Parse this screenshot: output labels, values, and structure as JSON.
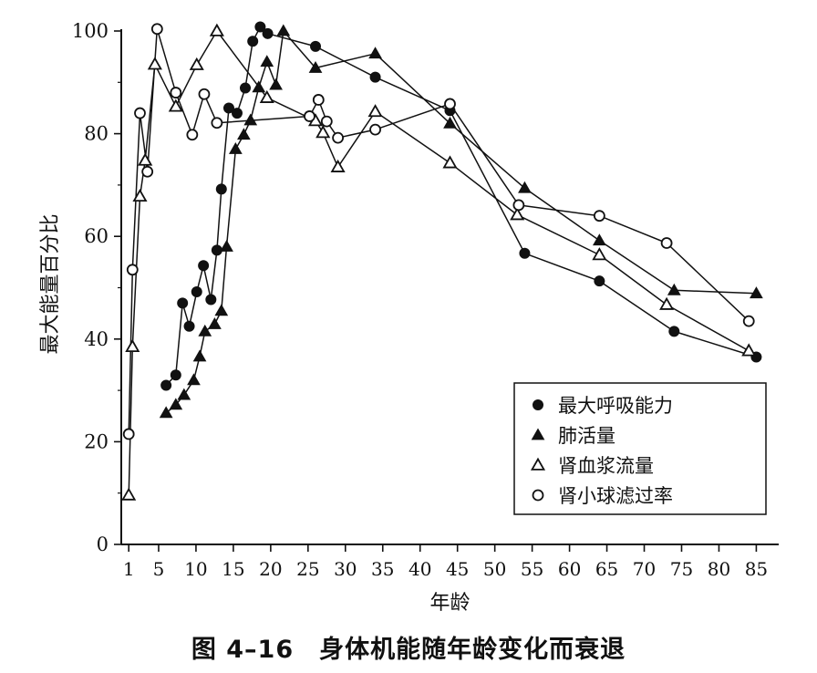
{
  "caption": {
    "number": "图 4–16",
    "title": "身体机能随年龄变化而衰退"
  },
  "chart_data": {
    "type": "line",
    "xlabel": "年龄",
    "ylabel": "最大能量百分比",
    "xlim": [
      0,
      88
    ],
    "ylim": [
      0,
      100
    ],
    "x_ticks": [
      1,
      5,
      10,
      15,
      20,
      25,
      30,
      35,
      40,
      45,
      50,
      55,
      60,
      65,
      70,
      75,
      80,
      85
    ],
    "y_ticks": [
      0,
      20,
      40,
      60,
      80,
      100
    ],
    "grid": false,
    "legend_position": "bottom-right",
    "series": [
      {
        "name": "最大呼吸能力",
        "marker": "filled-circle",
        "points": [
          [
            6,
            31
          ],
          [
            7.3,
            33
          ],
          [
            8.2,
            47
          ],
          [
            9.1,
            42.5
          ],
          [
            10.1,
            49.2
          ],
          [
            11,
            54.3
          ],
          [
            12,
            47.7
          ],
          [
            12.8,
            57.3
          ],
          [
            13.4,
            69.2
          ],
          [
            14.4,
            85
          ],
          [
            15.5,
            84
          ],
          [
            16.6,
            88.9
          ],
          [
            17.6,
            98
          ],
          [
            18.6,
            100.8
          ],
          [
            19.6,
            99.5
          ],
          [
            26,
            97
          ],
          [
            34,
            91
          ],
          [
            44,
            84.5
          ],
          [
            54,
            56.7
          ],
          [
            64,
            51.3
          ],
          [
            74,
            41.5
          ],
          [
            85,
            36.5
          ]
        ]
      },
      {
        "name": "肺活量",
        "marker": "filled-triangle",
        "points": [
          [
            6,
            25.6
          ],
          [
            7.3,
            27.2
          ],
          [
            8.4,
            29.1
          ],
          [
            9.7,
            32
          ],
          [
            10.5,
            36.6
          ],
          [
            11.2,
            41.5
          ],
          [
            12.5,
            42.9
          ],
          [
            13.4,
            45.5
          ],
          [
            14.1,
            58
          ],
          [
            15.3,
            77
          ],
          [
            16.4,
            79.8
          ],
          [
            17.3,
            82.6
          ],
          [
            18.4,
            89
          ],
          [
            19.5,
            94
          ],
          [
            20.7,
            89.5
          ],
          [
            21.7,
            100
          ],
          [
            26,
            92.8
          ],
          [
            34,
            95.6
          ],
          [
            44,
            82
          ],
          [
            54,
            69.4
          ],
          [
            64,
            59.2
          ],
          [
            74,
            49.5
          ],
          [
            85,
            48.9
          ]
        ]
      },
      {
        "name": "肾血浆流量",
        "marker": "open-triangle",
        "points": [
          [
            1,
            9.6
          ],
          [
            1.5,
            38.5
          ],
          [
            2.5,
            67.8
          ],
          [
            3.2,
            74.8
          ],
          [
            4.5,
            93.5
          ],
          [
            7.3,
            85.3
          ],
          [
            10.1,
            93.4
          ],
          [
            12.8,
            100
          ],
          [
            19.5,
            87
          ],
          [
            26,
            82.5
          ],
          [
            27,
            80.2
          ],
          [
            29,
            73.5
          ],
          [
            34,
            84.3
          ],
          [
            44,
            74.3
          ],
          [
            53,
            64.2
          ],
          [
            64,
            56.4
          ],
          [
            73,
            46.7
          ],
          [
            84,
            37.7
          ]
        ]
      },
      {
        "name": "肾小球滤过率",
        "marker": "open-circle",
        "points": [
          [
            1,
            21.5
          ],
          [
            1.5,
            53.5
          ],
          [
            2.5,
            84
          ],
          [
            3.5,
            72.6
          ],
          [
            4.8,
            100.4
          ],
          [
            7.3,
            88
          ],
          [
            9.5,
            79.8
          ],
          [
            11.1,
            87.7
          ],
          [
            12.8,
            82.1
          ],
          [
            25.2,
            83.4
          ],
          [
            26.4,
            86.6
          ],
          [
            27.5,
            82.4
          ],
          [
            29,
            79.2
          ],
          [
            34,
            80.8
          ],
          [
            44,
            85.8
          ],
          [
            53.2,
            66.1
          ],
          [
            64,
            64
          ],
          [
            73,
            58.7
          ],
          [
            84,
            43.5
          ]
        ]
      }
    ]
  }
}
